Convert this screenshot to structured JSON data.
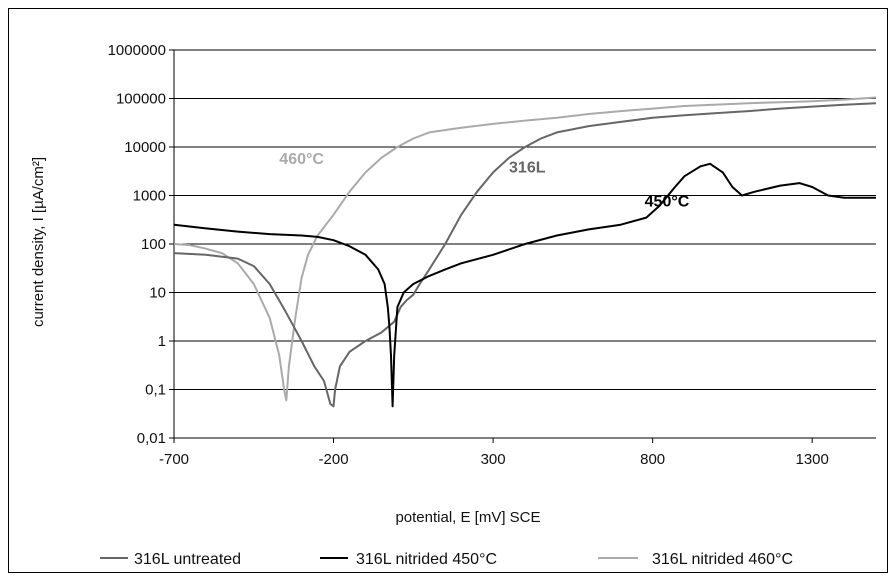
{
  "chart_data": {
    "type": "line",
    "title": "",
    "xlabel": "potential, E [mV] SCE",
    "ylabel": "current density, I [µA/cm²]",
    "xlim": [
      -700,
      1500
    ],
    "ylim": [
      0.01,
      1000000
    ],
    "yscale": "log",
    "grid": "horizontal",
    "legend": "bottom",
    "x_ticks": [
      "-700",
      "-200",
      "300",
      "800",
      "1300"
    ],
    "x_tick_values": [
      -700,
      -200,
      300,
      800,
      1300
    ],
    "y_ticks": [
      "0,01",
      "0,1",
      "1",
      "10",
      "100",
      "1000",
      "10000",
      "100000",
      "1000000"
    ],
    "y_tick_values": [
      0.01,
      0.1,
      1,
      10,
      100,
      1000,
      10000,
      100000,
      1000000
    ],
    "series": [
      {
        "name": "316L untreated",
        "color": "#666666",
        "points": [
          [
            -700,
            65
          ],
          [
            -600,
            60
          ],
          [
            -500,
            50
          ],
          [
            -450,
            35
          ],
          [
            -400,
            15
          ],
          [
            -350,
            4
          ],
          [
            -300,
            1
          ],
          [
            -260,
            0.3
          ],
          [
            -230,
            0.15
          ],
          [
            -210,
            0.05
          ],
          [
            -200,
            0.045
          ],
          [
            -195,
            0.1
          ],
          [
            -180,
            0.3
          ],
          [
            -150,
            0.6
          ],
          [
            -100,
            1
          ],
          [
            -50,
            1.5
          ],
          [
            -10,
            2.5
          ],
          [
            10,
            5
          ],
          [
            30,
            7
          ],
          [
            50,
            9
          ],
          [
            70,
            15
          ],
          [
            100,
            30
          ],
          [
            150,
            100
          ],
          [
            200,
            400
          ],
          [
            250,
            1200
          ],
          [
            300,
            3000
          ],
          [
            350,
            6000
          ],
          [
            400,
            10000
          ],
          [
            450,
            15000
          ],
          [
            500,
            20000
          ],
          [
            600,
            27000
          ],
          [
            700,
            33000
          ],
          [
            800,
            40000
          ],
          [
            900,
            45000
          ],
          [
            1000,
            50000
          ],
          [
            1100,
            55000
          ],
          [
            1200,
            62000
          ],
          [
            1300,
            68000
          ],
          [
            1400,
            74000
          ],
          [
            1500,
            80000
          ]
        ]
      },
      {
        "name": "316L nitrided 450°C",
        "color": "#000000",
        "points": [
          [
            -700,
            250
          ],
          [
            -600,
            210
          ],
          [
            -500,
            180
          ],
          [
            -400,
            160
          ],
          [
            -300,
            150
          ],
          [
            -250,
            140
          ],
          [
            -200,
            120
          ],
          [
            -150,
            90
          ],
          [
            -100,
            60
          ],
          [
            -60,
            30
          ],
          [
            -40,
            15
          ],
          [
            -30,
            5
          ],
          [
            -25,
            2
          ],
          [
            -20,
            0.5
          ],
          [
            -15,
            0.045
          ],
          [
            -10,
            0.5
          ],
          [
            0,
            5
          ],
          [
            20,
            10
          ],
          [
            50,
            15
          ],
          [
            100,
            22
          ],
          [
            150,
            30
          ],
          [
            200,
            40
          ],
          [
            300,
            60
          ],
          [
            400,
            100
          ],
          [
            500,
            150
          ],
          [
            600,
            200
          ],
          [
            700,
            250
          ],
          [
            780,
            350
          ],
          [
            820,
            600
          ],
          [
            870,
            1500
          ],
          [
            900,
            2500
          ],
          [
            950,
            4000
          ],
          [
            980,
            4500
          ],
          [
            1020,
            3000
          ],
          [
            1050,
            1500
          ],
          [
            1080,
            1000
          ],
          [
            1120,
            1200
          ],
          [
            1200,
            1600
          ],
          [
            1260,
            1800
          ],
          [
            1300,
            1500
          ],
          [
            1350,
            1000
          ],
          [
            1400,
            900
          ],
          [
            1500,
            900
          ]
        ]
      },
      {
        "name": "316L nitrided 460°C",
        "color": "#aaaaaa",
        "points": [
          [
            -700,
            100
          ],
          [
            -650,
            95
          ],
          [
            -600,
            80
          ],
          [
            -550,
            65
          ],
          [
            -500,
            40
          ],
          [
            -450,
            15
          ],
          [
            -400,
            3
          ],
          [
            -370,
            0.5
          ],
          [
            -355,
            0.1
          ],
          [
            -348,
            0.06
          ],
          [
            -340,
            0.3
          ],
          [
            -320,
            3
          ],
          [
            -300,
            20
          ],
          [
            -280,
            60
          ],
          [
            -250,
            150
          ],
          [
            -200,
            400
          ],
          [
            -150,
            1200
          ],
          [
            -100,
            3000
          ],
          [
            -50,
            6000
          ],
          [
            0,
            10000
          ],
          [
            50,
            15000
          ],
          [
            100,
            20000
          ],
          [
            200,
            25000
          ],
          [
            300,
            30000
          ],
          [
            400,
            35000
          ],
          [
            500,
            40000
          ],
          [
            600,
            48000
          ],
          [
            700,
            55000
          ],
          [
            800,
            62000
          ],
          [
            900,
            70000
          ],
          [
            1000,
            75000
          ],
          [
            1100,
            80000
          ],
          [
            1200,
            84000
          ],
          [
            1300,
            88000
          ],
          [
            1400,
            95000
          ],
          [
            1500,
            105000
          ]
        ]
      }
    ],
    "annotations": [
      {
        "text": "460°C",
        "x": -370,
        "y": 4500,
        "color": "#aaaaaa"
      },
      {
        "text": "316L",
        "x": 350,
        "y": 3000,
        "color": "#666666"
      },
      {
        "text": "450°C",
        "x": 775,
        "y": 600,
        "color": "#000000"
      }
    ]
  }
}
